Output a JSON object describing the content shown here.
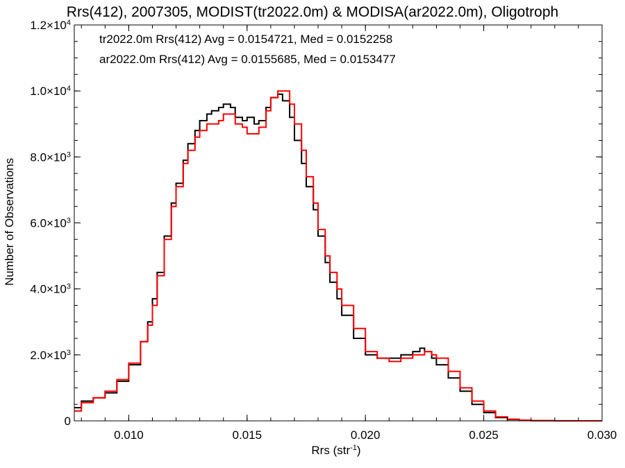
{
  "chart_data": {
    "type": "line",
    "title": "Rrs(412), 2007305, MODIST(tr2022.0m) & MODISA(ar2022.0m), Oligotroph",
    "xlabel": "Rrs (str",
    "xlabel_sup": "-1",
    "xlabel_close": ")",
    "ylabel": "Number of Observations",
    "xlim": [
      0.0077,
      0.03
    ],
    "ylim": [
      0,
      12000
    ],
    "x_ticks": [
      {
        "value": 0.01,
        "label": "0.010"
      },
      {
        "value": 0.015,
        "label": "0.015"
      },
      {
        "value": 0.02,
        "label": "0.020"
      },
      {
        "value": 0.025,
        "label": "0.025"
      },
      {
        "value": 0.03,
        "label": "0.030"
      }
    ],
    "y_ticks": [
      {
        "value": 0,
        "mant": "0",
        "exp": ""
      },
      {
        "value": 2000,
        "mant": "2.0×10",
        "exp": "3"
      },
      {
        "value": 4000,
        "mant": "4.0×10",
        "exp": "3"
      },
      {
        "value": 6000,
        "mant": "6.0×10",
        "exp": "3"
      },
      {
        "value": 8000,
        "mant": "8.0×10",
        "exp": "3"
      },
      {
        "value": 10000,
        "mant": "1.0×10",
        "exp": "4"
      },
      {
        "value": 12000,
        "mant": "1.2×10",
        "exp": "4"
      }
    ],
    "grid": false,
    "legend_position": "top-left",
    "series": [
      {
        "name": "tr2022.0m",
        "color": "#000000",
        "annotation": "tr2022.0m Rrs(412) Avg = 0.0154721, Med = 0.0152258",
        "x": [
          0.0077,
          0.008,
          0.0085,
          0.009,
          0.0095,
          0.01,
          0.0105,
          0.0108,
          0.011,
          0.0112,
          0.0115,
          0.0118,
          0.012,
          0.0123,
          0.0125,
          0.0128,
          0.013,
          0.0133,
          0.0135,
          0.0138,
          0.014,
          0.0143,
          0.0145,
          0.0148,
          0.015,
          0.0153,
          0.0155,
          0.0158,
          0.016,
          0.0163,
          0.0165,
          0.0168,
          0.017,
          0.0173,
          0.0175,
          0.0178,
          0.018,
          0.0183,
          0.0185,
          0.0188,
          0.019,
          0.0195,
          0.02,
          0.0205,
          0.021,
          0.0215,
          0.022,
          0.0223,
          0.0225,
          0.0228,
          0.023,
          0.0235,
          0.024,
          0.0245,
          0.025,
          0.0255,
          0.026,
          0.0265,
          0.027,
          0.028,
          0.029,
          0.03
        ],
        "y": [
          400,
          600,
          700,
          850,
          1200,
          1700,
          2400,
          3000,
          3700,
          4500,
          5600,
          6600,
          7200,
          7900,
          8400,
          8800,
          9100,
          9300,
          9400,
          9500,
          9600,
          9500,
          9200,
          9100,
          9200,
          9000,
          9100,
          9500,
          9800,
          9900,
          9700,
          9200,
          8500,
          7800,
          7100,
          6400,
          5600,
          4800,
          4200,
          3700,
          3200,
          2500,
          2000,
          1900,
          1900,
          2000,
          2100,
          2200,
          2100,
          1900,
          1700,
          1300,
          900,
          500,
          250,
          100,
          40,
          15,
          5,
          1,
          0,
          0
        ]
      },
      {
        "name": "ar2022.0m",
        "color": "#ff0000",
        "annotation": "ar2022.0m Rrs(412) Avg = 0.0155685, Med = 0.0153477",
        "x": [
          0.0077,
          0.008,
          0.0085,
          0.009,
          0.0095,
          0.01,
          0.0105,
          0.0108,
          0.011,
          0.0112,
          0.0115,
          0.0118,
          0.012,
          0.0123,
          0.0125,
          0.0128,
          0.013,
          0.0133,
          0.0135,
          0.0138,
          0.014,
          0.0143,
          0.0145,
          0.0148,
          0.015,
          0.0153,
          0.0155,
          0.0158,
          0.016,
          0.0163,
          0.0165,
          0.0168,
          0.017,
          0.0173,
          0.0175,
          0.0178,
          0.018,
          0.0183,
          0.0185,
          0.0188,
          0.019,
          0.0195,
          0.02,
          0.0205,
          0.021,
          0.0215,
          0.022,
          0.0223,
          0.0225,
          0.0228,
          0.023,
          0.0235,
          0.024,
          0.0245,
          0.025,
          0.0255,
          0.026,
          0.0265,
          0.027,
          0.028,
          0.029,
          0.03
        ],
        "y": [
          300,
          550,
          700,
          900,
          1250,
          1750,
          2400,
          2900,
          3500,
          4400,
          5500,
          6500,
          7100,
          7800,
          8200,
          8600,
          8800,
          9000,
          9000,
          9100,
          9300,
          9300,
          9000,
          8900,
          8700,
          8700,
          8900,
          9400,
          9800,
          10000,
          10000,
          9600,
          9000,
          8200,
          7400,
          6600,
          5800,
          5000,
          4500,
          4000,
          3500,
          2800,
          2100,
          1900,
          1800,
          1900,
          2000,
          2000,
          2100,
          2000,
          1900,
          1500,
          1000,
          600,
          300,
          120,
          50,
          20,
          8,
          2,
          0,
          0
        ]
      }
    ]
  }
}
